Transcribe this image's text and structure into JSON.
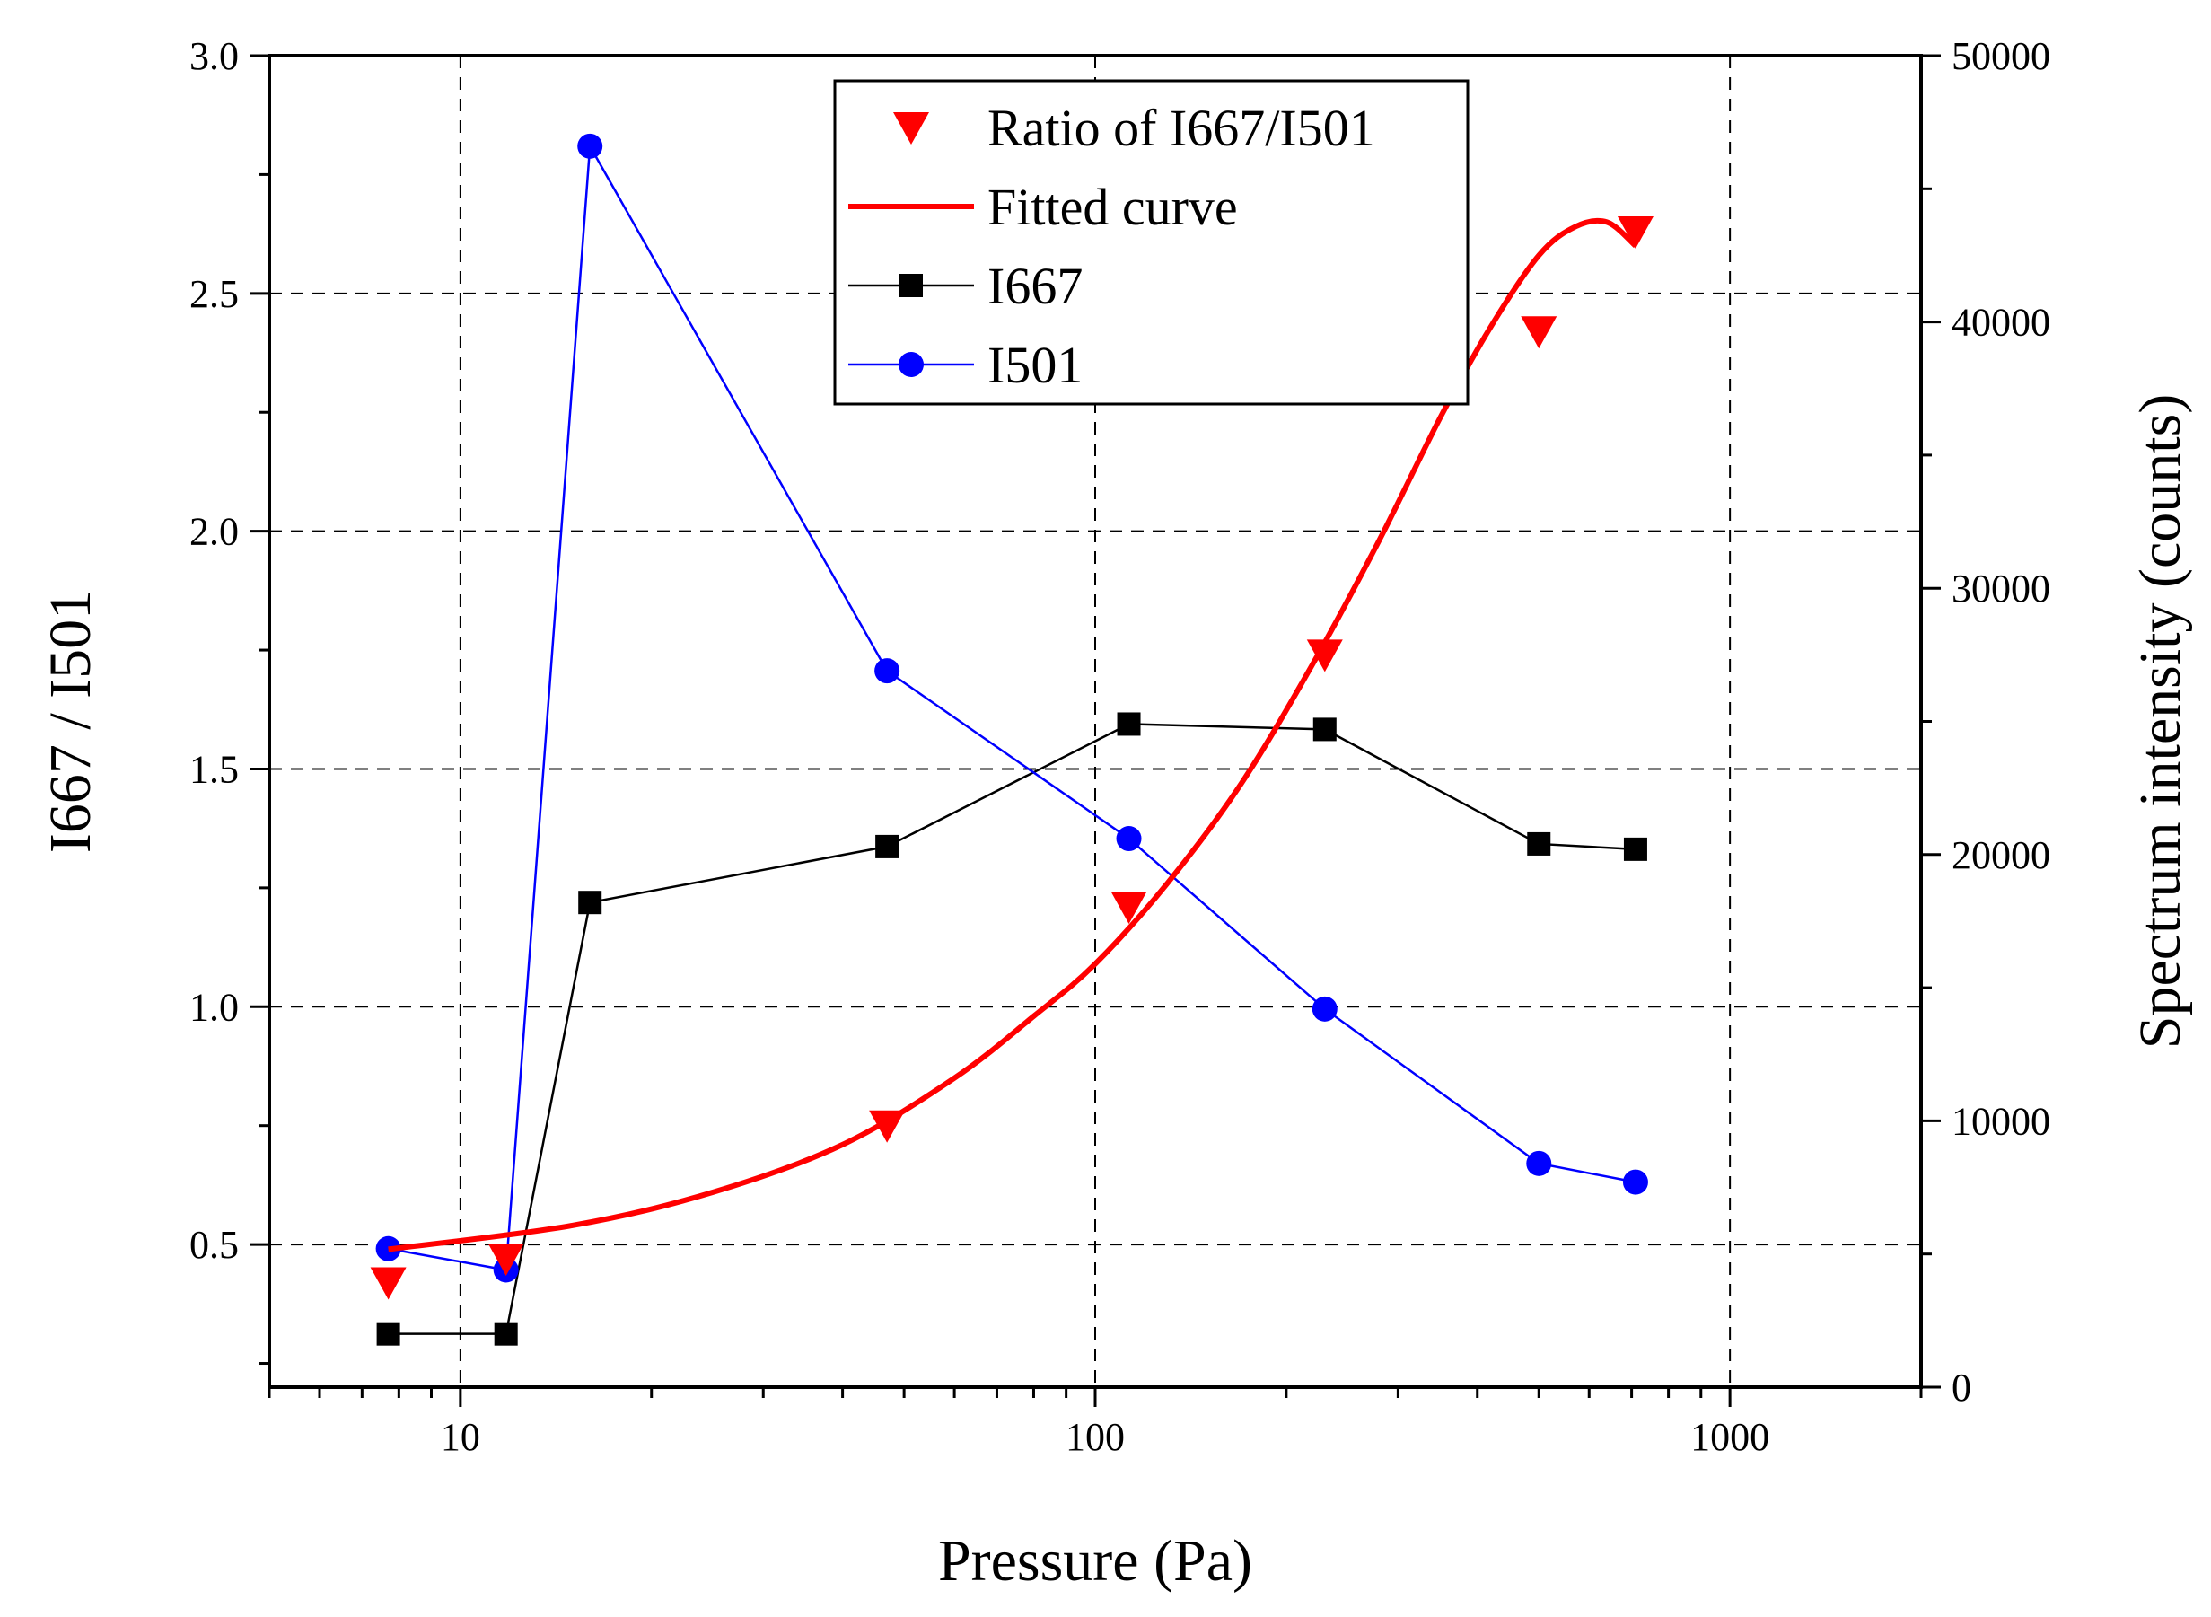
{
  "chart_data": {
    "type": "line",
    "title": "",
    "xlabel": "Pressure (Pa)",
    "ylabel_left": "I667 / I501",
    "ylabel_right": "Spectrum intensity (counts)",
    "xscale": "log",
    "xlim": [
      5,
      2000
    ],
    "ylim_left": [
      0.2,
      3.0
    ],
    "ylim_right": [
      0,
      50000
    ],
    "x_ticks": [
      10,
      100,
      1000
    ],
    "x_tick_labels": [
      "10",
      "100",
      "1000"
    ],
    "y_left_ticks": [
      0.5,
      1.0,
      1.5,
      2.0,
      2.5,
      3.0
    ],
    "y_left_tick_labels": [
      "0.5",
      "1.0",
      "1.5",
      "2.0",
      "2.5",
      "3.0"
    ],
    "y_right_ticks": [
      0,
      10000,
      20000,
      30000,
      40000,
      50000
    ],
    "y_right_tick_labels": [
      "0",
      "10000",
      "20000",
      "30000",
      "40000",
      "50000"
    ],
    "grid": true,
    "legend_position": "top-center",
    "series": [
      {
        "name": "Ratio of I667/I501",
        "axis": "left",
        "marker": "triangle-down",
        "line": false,
        "color": "#ff0000",
        "x": [
          7.7,
          11.8,
          47,
          113,
          230,
          500,
          710
        ],
        "values": [
          0.42,
          0.47,
          0.75,
          1.21,
          1.74,
          2.42,
          2.63
        ]
      },
      {
        "name": "Fitted curve",
        "axis": "left",
        "marker": "none",
        "line": true,
        "color": "#ff0000",
        "x": [
          7.7,
          15,
          25,
          40,
          60,
          80,
          100,
          130,
          170,
          220,
          280,
          350,
          420,
          500,
          570,
          640,
          710
        ],
        "values": [
          0.49,
          0.54,
          0.61,
          0.71,
          0.85,
          0.98,
          1.09,
          1.26,
          1.47,
          1.72,
          1.98,
          2.24,
          2.43,
          2.58,
          2.64,
          2.65,
          2.6
        ]
      },
      {
        "name": "I667",
        "axis": "right",
        "marker": "square",
        "line": true,
        "color": "#000000",
        "x": [
          7.7,
          11.8,
          16,
          47,
          113,
          230,
          500,
          710
        ],
        "values": [
          2000,
          2000,
          18200,
          20300,
          24900,
          24700,
          20400,
          20200
        ]
      },
      {
        "name": "I501",
        "axis": "right",
        "marker": "circle",
        "line": true,
        "color": "#0000ff",
        "x": [
          7.7,
          11.8,
          16,
          47,
          113,
          230,
          500,
          710
        ],
        "values": [
          5200,
          4400,
          46600,
          26900,
          20600,
          14200,
          8400,
          7700
        ]
      }
    ]
  }
}
